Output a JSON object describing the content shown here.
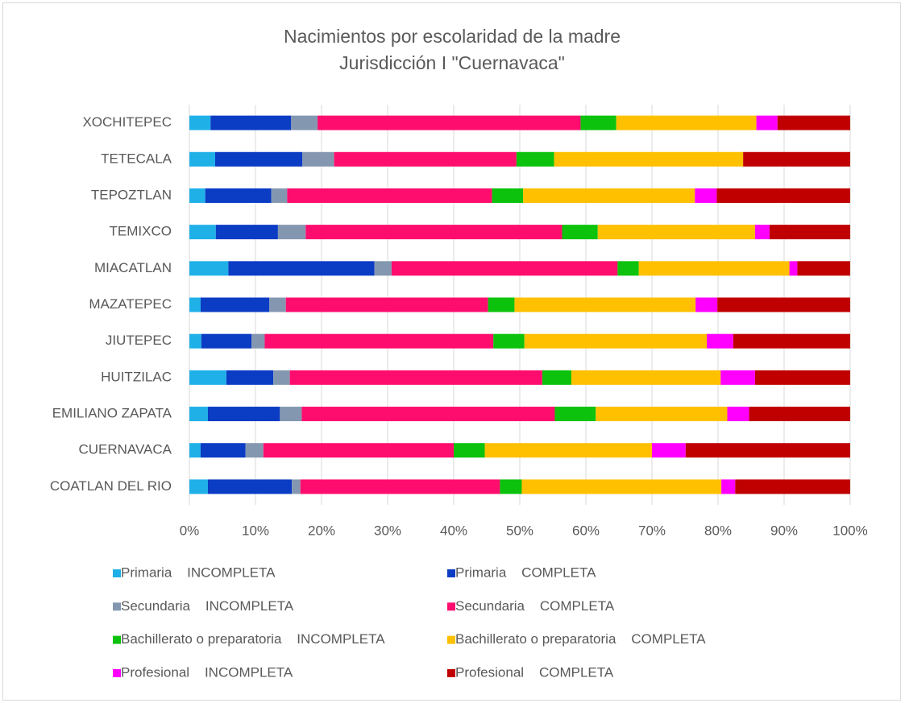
{
  "chart_data": {
    "type": "stacked_barh",
    "title": "Nacimientos por escolaridad de la madre",
    "subtitle": "Jurisdicción I \"Cuernavaca\"",
    "categories": [
      "XOCHITEPEC",
      "TETECALA",
      "TEPOZTLAN",
      "TEMIXCO",
      "MIACATLAN",
      "MAZATEPEC",
      "JIUTEPEC",
      "HUITZILAC",
      "EMILIANO ZAPATA",
      "CUERNAVACA",
      "COATLAN DEL RIO"
    ],
    "series": [
      {
        "name": "Primaria    INCOMPLETA",
        "color": "#1fb0e8",
        "values": [
          3.2,
          3.9,
          2.4,
          4.0,
          5.9,
          1.7,
          1.8,
          5.6,
          2.8,
          1.7,
          2.8
        ]
      },
      {
        "name": "Primaria    COMPLETA",
        "color": "#0b3cc4",
        "values": [
          12.2,
          13.2,
          10.0,
          9.4,
          22.1,
          10.4,
          7.6,
          7.1,
          10.9,
          6.8,
          12.7
        ]
      },
      {
        "name": "Secundaria    INCOMPLETA",
        "color": "#8497b0",
        "values": [
          4.0,
          4.8,
          2.4,
          4.2,
          2.6,
          2.5,
          2.0,
          2.5,
          3.3,
          2.7,
          1.3
        ]
      },
      {
        "name": "Secundaria    COMPLETA",
        "color": "#ff0d6e",
        "values": [
          39.8,
          27.6,
          31.0,
          38.8,
          34.2,
          30.6,
          34.6,
          38.2,
          38.3,
          28.8,
          30.2
        ]
      },
      {
        "name": "Bachillerato o preparatoria    INCOMPLETA",
        "color": "#0cc20c",
        "values": [
          5.4,
          5.7,
          4.7,
          5.4,
          3.2,
          4.0,
          4.7,
          4.4,
          6.2,
          4.7,
          3.3
        ]
      },
      {
        "name": "Bachillerato o preparatoria    COMPLETA",
        "color": "#ffc000",
        "values": [
          21.2,
          28.6,
          26.0,
          23.8,
          22.8,
          27.4,
          27.6,
          22.6,
          19.9,
          25.3,
          30.2
        ]
      },
      {
        "name": "Profesional    INCOMPLETA",
        "color": "#ff00ff",
        "values": [
          3.2,
          0,
          3.3,
          2.2,
          1.2,
          3.3,
          4.0,
          5.2,
          3.3,
          5.1,
          2.1
        ]
      },
      {
        "name": "Profesional    COMPLETA",
        "color": "#c00000",
        "values": [
          11.0,
          16.2,
          20.2,
          12.2,
          8.0,
          20.1,
          17.7,
          14.4,
          15.3,
          24.9,
          17.4
        ]
      }
    ],
    "xlim": [
      0,
      100
    ],
    "xticks": [
      {
        "value": 0,
        "label": "0%"
      },
      {
        "value": 10,
        "label": "10%"
      },
      {
        "value": 20,
        "label": "20%"
      },
      {
        "value": 30,
        "label": "30%"
      },
      {
        "value": 40,
        "label": "40%"
      },
      {
        "value": 50,
        "label": "50%"
      },
      {
        "value": 60,
        "label": "60%"
      },
      {
        "value": 70,
        "label": "70%"
      },
      {
        "value": 80,
        "label": "80%"
      },
      {
        "value": 90,
        "label": "90%"
      },
      {
        "value": 100,
        "label": "100%"
      }
    ],
    "grid": true,
    "legend": "bottom"
  }
}
